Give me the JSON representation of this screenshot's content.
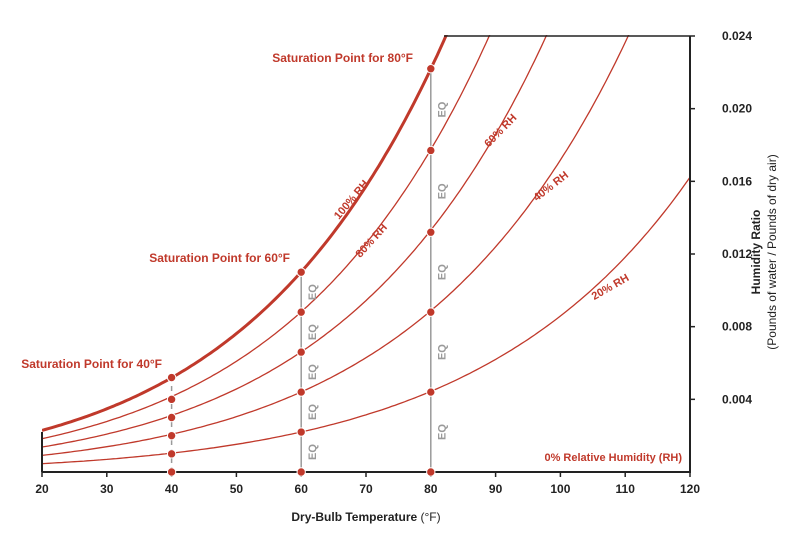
{
  "chart_data": {
    "type": "line",
    "title": "",
    "xlabel": "Dry-Bulb Temperature",
    "xlabel_unit": "(°F)",
    "ylabel": "Humidity Ratio",
    "ylabel_sub": "(Pounds of water / Pounds of dry air)",
    "xlim": [
      20,
      120
    ],
    "ylim": [
      0,
      0.024
    ],
    "x_ticks": [
      20,
      30,
      40,
      50,
      60,
      70,
      80,
      90,
      100,
      110,
      120
    ],
    "y_ticks": [
      0.004,
      0.008,
      0.012,
      0.016,
      0.02,
      0.024
    ],
    "y_tick_labels": [
      "0.004",
      "0.008",
      "0.012",
      "0.016",
      "0.020",
      "0.024"
    ],
    "grid": false,
    "y_axis_side": "right",
    "series": [
      {
        "name": "100% RH",
        "rh": 1.0,
        "emphasis": true
      },
      {
        "name": "80% RH",
        "rh": 0.8
      },
      {
        "name": "60% RH",
        "rh": 0.6
      },
      {
        "name": "40% RH",
        "rh": 0.4
      },
      {
        "name": "20% RH",
        "rh": 0.2
      },
      {
        "name": "0% Relative Humidity (RH)",
        "rh": 0.0
      }
    ],
    "saturation_points": [
      {
        "label": "Saturation Point for 40°F",
        "x": 40,
        "y": 0.0052
      },
      {
        "label": "Saturation Point for 60°F",
        "x": 60,
        "y": 0.011
      },
      {
        "label": "Saturation Point for 80°F",
        "x": 80,
        "y": 0.0222
      }
    ],
    "eq_verticals": [
      {
        "x": 40,
        "points": [
          0.0,
          0.001,
          0.002,
          0.003,
          0.004,
          0.0052
        ],
        "labels": []
      },
      {
        "x": 60,
        "points": [
          0.0,
          0.0022,
          0.0044,
          0.0066,
          0.0088,
          0.011
        ],
        "labels": [
          "EQ",
          "EQ",
          "EQ",
          "EQ",
          "EQ"
        ]
      },
      {
        "x": 80,
        "points": [
          0.0,
          0.0044,
          0.0088,
          0.0132,
          0.0177,
          0.0222
        ],
        "labels": [
          "EQ",
          "EQ",
          "EQ",
          "EQ",
          "EQ"
        ]
      }
    ],
    "colors": {
      "curve": "#c0392b",
      "eq": "#9a9a9a",
      "axis": "#222222"
    }
  }
}
